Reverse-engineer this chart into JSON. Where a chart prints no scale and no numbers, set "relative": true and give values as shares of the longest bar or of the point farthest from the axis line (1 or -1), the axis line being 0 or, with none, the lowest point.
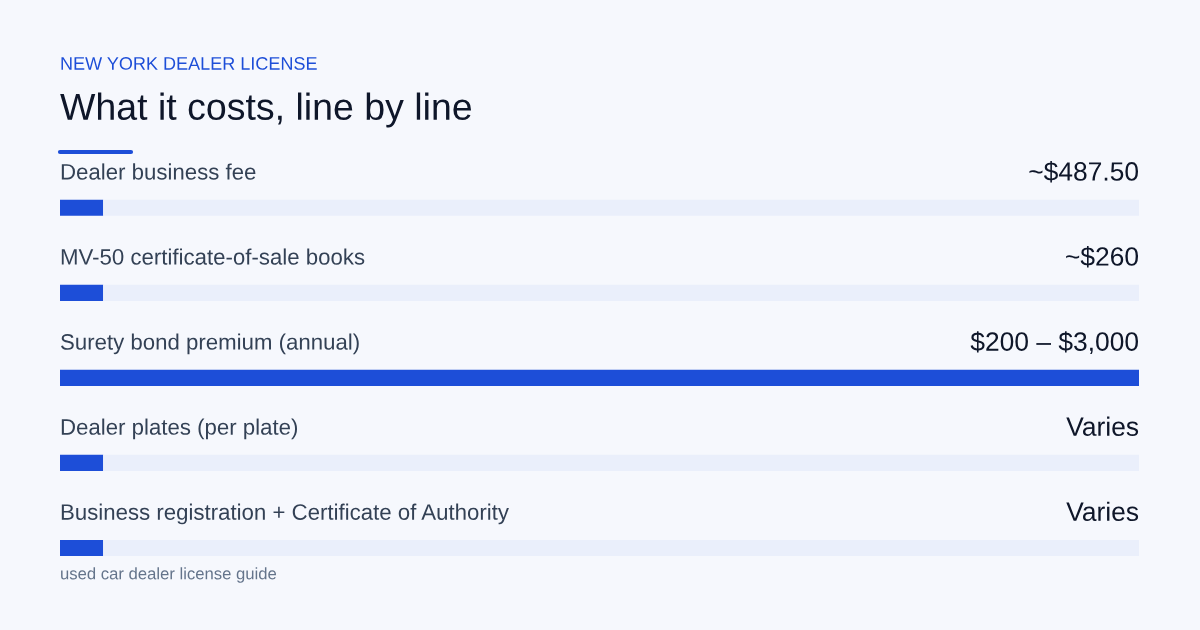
{
  "chart_data": {
    "type": "bar",
    "orientation": "horizontal",
    "stacked": true,
    "relative": true,
    "subtitle": "NEW YORK DEALER LICENSE",
    "title": "What it costs, line by line",
    "categories": [
      "Dealer business fee",
      "MV-50 certificate-of-sale books",
      "Surety bond premium (annual)",
      "Dealer plates (per plate)",
      "Business registration + Certificate of Authority"
    ],
    "series": [
      {
        "color": "#1d4ed8",
        "values": [
          0.04,
          0.04,
          1,
          0.04,
          0.04
        ]
      },
      {
        "color": "#eaeffb",
        "values": [
          0.96,
          0.96,
          0,
          0.96,
          0.96
        ]
      }
    ],
    "annotations": [
      "~$487.50",
      "~$260",
      "$200 – $3,000",
      "Varies",
      "Varies",
      "used car dealer license guide"
    ]
  }
}
